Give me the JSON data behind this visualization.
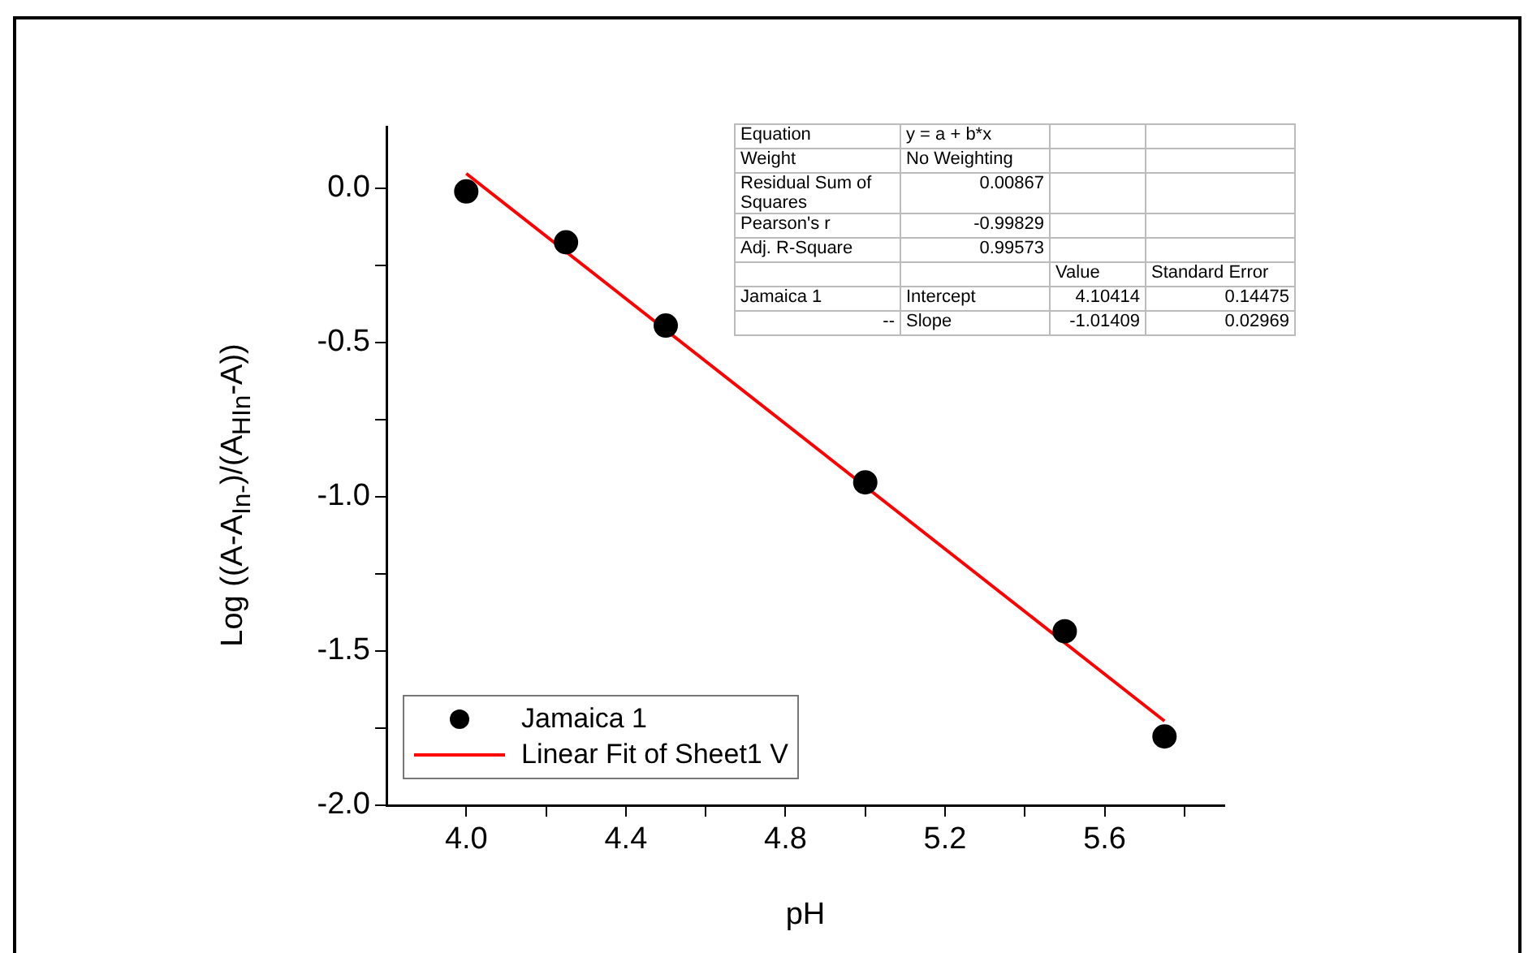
{
  "chart_data": {
    "type": "scatter",
    "xlabel": "pH",
    "ylabel": "Log ((A-A$_{In-}$)/(A$_{HIn}$-A))",
    "xlim": [
      3.8,
      5.9
    ],
    "xticks": [
      {
        "value": 4,
        "label": "4.0"
      },
      {
        "value": 4.2,
        "label": null
      },
      4.4,
      {
        "value": 4.6,
        "label": null
      },
      4.8,
      {
        "value": 5.0,
        "label": null
      },
      5.2,
      {
        "value": 5.4,
        "label": null
      },
      5.6,
      {
        "value": 5.8,
        "label": null
      }
    ],
    "ylim": [
      -2.0,
      0.2
    ],
    "yticks": [
      {
        "value": -2,
        "label": "-2.0"
      },
      {
        "value": -1.75,
        "label": null
      },
      -1.5,
      {
        "value": -1.25,
        "label": null
      },
      {
        "value": -1,
        "label": "-1.0"
      },
      {
        "value": -0.75,
        "label": null
      },
      -0.5,
      {
        "value": -0.25,
        "label": null
      },
      {
        "value": 0,
        "label": "0.0"
      }
    ],
    "series": [
      {
        "name": "Jamaica 1",
        "type": "scatter",
        "color": "#000000",
        "marker": "circle",
        "x": [
          4.0,
          4.25,
          4.5,
          5.0,
          5.5,
          5.75
        ],
        "values": [
          -0.01,
          -0.175,
          -0.445,
          -0.953,
          -1.436,
          -1.777
        ]
      },
      {
        "name": "Linear Fit of Sheet1 V",
        "type": "line",
        "color": "#ff0000",
        "marker": "none",
        "line_style": "solid",
        "x": [
          4.0,
          5.75
        ],
        "values": [
          0.048,
          -1.727
        ]
      }
    ],
    "legend": "bottom left",
    "grid": false,
    "annotations": [
      "Equation",
      "y = a + b*x",
      "Weight",
      "No Weighting",
      "Residual Sum of Squares",
      "0.00867",
      "Pearson's r",
      "-0.99829",
      "Adj. R-Square",
      "0.99573",
      "Value",
      "Standard Error",
      "Jamaica 1",
      "Intercept",
      "4.10414",
      "0.14475",
      "--",
      "Slope",
      "-1.01409",
      "0.02969"
    ]
  }
}
